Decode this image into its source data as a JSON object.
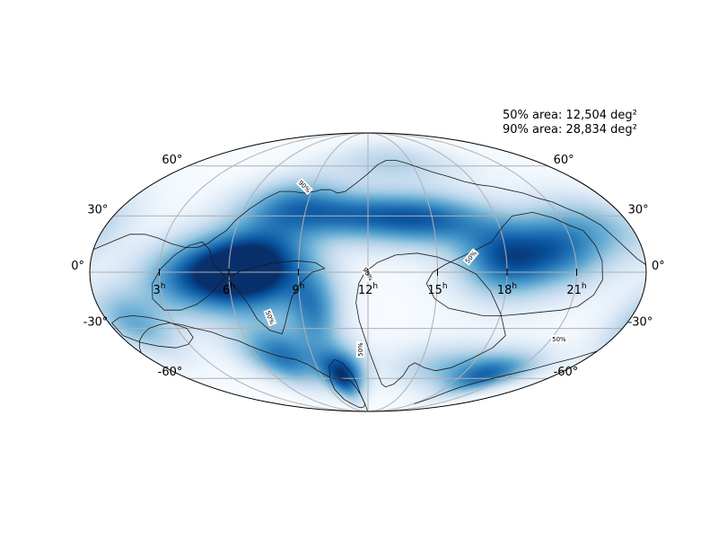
{
  "chart_data": {
    "type": "heatmap",
    "projection": "mollweide",
    "colormap": "Blues",
    "colors": {
      "background": "#ffffff",
      "colormap_low": "#f7fbff",
      "colormap_high": "#08306b",
      "grid": "#b0b0b0",
      "contour": "#1a1a1a"
    },
    "grid": true,
    "annotations": [
      {
        "label": "50% area: 12,504 deg²"
      },
      {
        "label": "90% area: 28,834 deg²"
      }
    ],
    "dec_ticks": {
      "left": [
        {
          "dec": 60,
          "label": "60°"
        },
        {
          "dec": 30,
          "label": "30°"
        },
        {
          "dec": 0,
          "label": "0°"
        },
        {
          "dec": -30,
          "label": "-30°"
        },
        {
          "dec": -60,
          "label": "-60°"
        }
      ],
      "right": [
        {
          "dec": 60,
          "label": "60°"
        },
        {
          "dec": 30,
          "label": "30°"
        },
        {
          "dec": 0,
          "label": "0°"
        },
        {
          "dec": -30,
          "label": "-30°"
        },
        {
          "dec": -60,
          "label": "-60°"
        }
      ]
    },
    "ra_ticks": [
      {
        "ra_hours": 21,
        "label": "21",
        "unit": "h"
      },
      {
        "ra_hours": 18,
        "label": "18",
        "unit": "h"
      },
      {
        "ra_hours": 15,
        "label": "15",
        "unit": "h"
      },
      {
        "ra_hours": 12,
        "label": "12",
        "unit": "h"
      },
      {
        "ra_hours": 9,
        "label": "9",
        "unit": "h"
      },
      {
        "ra_hours": 6,
        "label": "6",
        "unit": "h"
      },
      {
        "ra_hours": 3,
        "label": "3",
        "unit": "h"
      }
    ],
    "probability_blobs": [
      {
        "ra_hours": 6.0,
        "dec": 0,
        "peak": 1.0,
        "sigma_ra_h": 1.5,
        "sigma_dec": 14
      },
      {
        "ra_hours": 7.8,
        "dec": 4,
        "peak": 0.65,
        "sigma_ra_h": 1.4,
        "sigma_dec": 15
      },
      {
        "ra_hours": 3.8,
        "dec": -4,
        "peak": 0.4,
        "sigma_ra_h": 1.3,
        "sigma_dec": 13
      },
      {
        "ra_hours": 18.0,
        "dec": 7,
        "peak": 0.8,
        "sigma_ra_h": 1.4,
        "sigma_dec": 13
      },
      {
        "ra_hours": 20.4,
        "dec": 13,
        "peak": 0.55,
        "sigma_ra_h": 1.3,
        "sigma_dec": 13
      },
      {
        "ra_hours": 15.0,
        "dec": 28,
        "peak": 0.6,
        "sigma_ra_h": 2.0,
        "sigma_dec": 10
      },
      {
        "ra_hours": 11.3,
        "dec": 30,
        "peak": 0.6,
        "sigma_ra_h": 2.4,
        "sigma_dec": 9
      },
      {
        "ra_hours": 8.2,
        "dec": 38,
        "peak": 0.45,
        "sigma_ra_h": 1.8,
        "sigma_dec": 10
      },
      {
        "ra_hours": 10.4,
        "dec": -58,
        "peak": 0.95,
        "sigma_ra_h": 0.9,
        "sigma_dec": 11
      },
      {
        "ra_hours": 7.4,
        "dec": -46,
        "peak": 0.7,
        "sigma_ra_h": 1.4,
        "sigma_dec": 12
      },
      {
        "ra_hours": 9.6,
        "dec": -20,
        "peak": 0.55,
        "sigma_ra_h": 0.8,
        "sigma_dec": 14
      },
      {
        "ra_hours": 19.6,
        "dec": -58,
        "peak": 0.7,
        "sigma_ra_h": 1.6,
        "sigma_dec": 9
      },
      {
        "ra_hours": 16.4,
        "dec": -52,
        "peak": 0.3,
        "sigma_ra_h": 2.0,
        "sigma_dec": 9
      },
      {
        "ra_hours": 1.2,
        "dec": -26,
        "peak": 0.45,
        "sigma_ra_h": 1.2,
        "sigma_dec": 12
      },
      {
        "ra_hours": 22.6,
        "dec": 24,
        "peak": 0.35,
        "sigma_ra_h": 1.5,
        "sigma_dec": 12
      },
      {
        "ra_hours": 13.6,
        "dec": 62,
        "peak": 0.25,
        "sigma_ra_h": 3.0,
        "sigma_dec": 10
      }
    ],
    "contours": [
      {
        "label": "90%",
        "points": [
          [
            -180,
            4
          ],
          [
            -175,
            7
          ],
          [
            -170,
            12
          ],
          [
            -165,
            18
          ],
          [
            -160,
            25
          ],
          [
            -152,
            31
          ],
          [
            -145,
            34
          ],
          [
            -138,
            38
          ],
          [
            -130,
            40
          ],
          [
            -122,
            43
          ],
          [
            -112,
            45
          ],
          [
            -102,
            47
          ],
          [
            -92,
            48
          ],
          [
            -82,
            50
          ],
          [
            -72,
            53
          ],
          [
            -60,
            56
          ],
          [
            -50,
            59
          ],
          [
            -40,
            62
          ],
          [
            -30,
            64
          ],
          [
            -20,
            64
          ],
          [
            -10,
            61
          ],
          [
            0,
            55
          ],
          [
            10,
            49
          ],
          [
            18,
            44
          ],
          [
            24,
            43
          ],
          [
            30,
            45
          ],
          [
            38,
            45
          ],
          [
            42,
            44
          ],
          [
            50,
            43
          ],
          [
            60,
            44
          ],
          [
            70,
            44
          ],
          [
            78,
            40
          ],
          [
            86,
            34
          ],
          [
            92,
            28
          ],
          [
            96,
            22
          ],
          [
            102,
            18
          ],
          [
            106,
            15
          ],
          [
            112,
            13
          ],
          [
            120,
            13
          ],
          [
            130,
            15
          ],
          [
            140,
            18
          ],
          [
            150,
            20
          ],
          [
            160,
            20
          ],
          [
            170,
            16
          ],
          [
            180,
            12
          ]
        ]
      },
      {
        "label": "",
        "points": [
          [
            -180,
            -43
          ],
          [
            -170,
            -47
          ],
          [
            -160,
            -50
          ],
          [
            -148,
            -54
          ],
          [
            -136,
            -57
          ],
          [
            -125,
            -60
          ],
          [
            -115,
            -63
          ],
          [
            -106,
            -66
          ],
          [
            -100,
            -70
          ],
          [
            -96,
            -75
          ],
          [
            -92,
            -80
          ]
        ]
      },
      {
        "label": "",
        "points": [
          [
            3,
            -88
          ],
          [
            6,
            -80
          ],
          [
            10,
            -72
          ],
          [
            14,
            -66
          ],
          [
            18,
            -62
          ],
          [
            22,
            -61
          ],
          [
            28,
            -60
          ],
          [
            36,
            -60
          ],
          [
            44,
            -56
          ],
          [
            52,
            -51
          ],
          [
            60,
            -48
          ],
          [
            72,
            -46
          ],
          [
            82,
            -43
          ],
          [
            90,
            -40
          ],
          [
            96,
            -37
          ],
          [
            104,
            -35
          ],
          [
            112,
            -32
          ],
          [
            122,
            -30
          ],
          [
            130,
            -28
          ],
          [
            138,
            -27
          ],
          [
            146,
            -28
          ],
          [
            155,
            -30
          ],
          [
            162,
            -33
          ],
          [
            170,
            -37
          ],
          [
            176,
            -41
          ],
          [
            180,
            -44
          ]
        ]
      },
      {
        "label": "50%",
        "closed": true,
        "points": [
          [
            -146,
            22
          ],
          [
            -138,
            25
          ],
          [
            -130,
            29
          ],
          [
            -118,
            32
          ],
          [
            -102,
            30
          ],
          [
            -92,
            24
          ],
          [
            -82,
            16
          ],
          [
            -74,
            13
          ],
          [
            -66,
            10
          ],
          [
            -58,
            7
          ],
          [
            -50,
            4
          ],
          [
            -42,
            0
          ],
          [
            -38,
            -6
          ],
          [
            -44,
            -14
          ],
          [
            -54,
            -19
          ],
          [
            -66,
            -21
          ],
          [
            -78,
            -23
          ],
          [
            -92,
            -23
          ],
          [
            -106,
            -22
          ],
          [
            -118,
            -21
          ],
          [
            -130,
            -20
          ],
          [
            -140,
            -18
          ],
          [
            -148,
            -12
          ],
          [
            -152,
            -4
          ],
          [
            -152,
            6
          ],
          [
            -150,
            14
          ]
        ]
      },
      {
        "label": "50%",
        "closed": true,
        "points": [
          [
            -100,
            -34
          ],
          [
            -90,
            -22
          ],
          [
            -80,
            -10
          ],
          [
            -70,
            -1
          ],
          [
            -58,
            4
          ],
          [
            -45,
            8
          ],
          [
            -32,
            10
          ],
          [
            -18,
            9
          ],
          [
            -6,
            5
          ],
          [
            2,
            0
          ],
          [
            6,
            -6
          ],
          [
            8,
            -16
          ],
          [
            6,
            -26
          ],
          [
            2,
            -36
          ],
          [
            -2,
            -45
          ],
          [
            -6,
            -52
          ],
          [
            -10,
            -58
          ],
          [
            -15,
            -64
          ],
          [
            -20,
            -66
          ],
          [
            -28,
            -64
          ],
          [
            -34,
            -58
          ],
          [
            -36,
            -52
          ],
          [
            -40,
            -50
          ],
          [
            -50,
            -53
          ],
          [
            -62,
            -55
          ],
          [
            -74,
            -53
          ],
          [
            -86,
            -47
          ],
          [
            -96,
            -41
          ]
        ]
      },
      {
        "label": "50%",
        "closed": true,
        "points": [
          [
            6,
            -80
          ],
          [
            10,
            -72
          ],
          [
            12,
            -64
          ],
          [
            16,
            -56
          ],
          [
            22,
            -50
          ],
          [
            28,
            -48
          ],
          [
            34,
            -52
          ],
          [
            38,
            -60
          ],
          [
            40,
            -68
          ],
          [
            38,
            -76
          ],
          [
            32,
            -80
          ],
          [
            24,
            -84
          ],
          [
            16,
            -84
          ],
          [
            10,
            -83
          ]
        ]
      },
      {
        "label": "50%",
        "closed": true,
        "points": [
          [
            28,
            2
          ],
          [
            36,
            0
          ],
          [
            44,
            -6
          ],
          [
            50,
            -13
          ],
          [
            54,
            -21
          ],
          [
            58,
            -28
          ],
          [
            62,
            -33
          ],
          [
            70,
            -31
          ],
          [
            76,
            -25
          ],
          [
            80,
            -16
          ],
          [
            86,
            -8
          ],
          [
            94,
            -1
          ],
          [
            100,
            4
          ],
          [
            104,
            12
          ],
          [
            110,
            16
          ],
          [
            118,
            14
          ],
          [
            126,
            9
          ],
          [
            134,
            2
          ],
          [
            140,
            -6
          ],
          [
            142,
            -14
          ],
          [
            137,
            -20
          ],
          [
            126,
            -20
          ],
          [
            114,
            -17
          ],
          [
            104,
            -12
          ],
          [
            94,
            -4
          ],
          [
            84,
            0
          ],
          [
            72,
            3
          ],
          [
            60,
            5
          ],
          [
            46,
            6
          ],
          [
            34,
            5
          ]
        ]
      },
      {
        "label": "",
        "closed": true,
        "points": [
          [
            128,
            -30
          ],
          [
            140,
            -26
          ],
          [
            150,
            -24
          ],
          [
            160,
            -23
          ],
          [
            170,
            -24
          ],
          [
            178,
            -27
          ],
          [
            178,
            -34
          ],
          [
            170,
            -38
          ],
          [
            160,
            -40
          ],
          [
            148,
            -41
          ],
          [
            136,
            -39
          ],
          [
            128,
            -35
          ]
        ]
      }
    ]
  },
  "contour_labels": [
    {
      "text": "90%",
      "ra_deg": 52,
      "dec": 47,
      "angle": 45
    },
    {
      "text": "90%",
      "ra_deg": 0,
      "dec": -1,
      "angle": 58
    },
    {
      "text": "50%",
      "ra_deg": -67,
      "dec": 8,
      "angle": -50
    },
    {
      "text": "50%",
      "ra_deg": 67,
      "dec": -24,
      "angle": 68
    },
    {
      "text": "50%",
      "ra_deg": -141,
      "dec": -36,
      "angle": 0
    },
    {
      "text": "50%",
      "ra_deg": 6,
      "dec": -42,
      "angle": -90
    }
  ]
}
